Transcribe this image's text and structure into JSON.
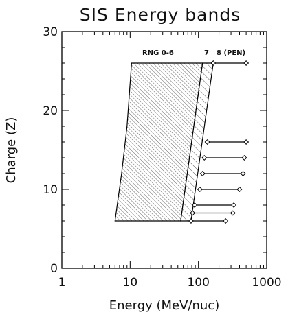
{
  "chart_data": {
    "type": "area",
    "title": "SIS Energy bands",
    "xlabel": "Energy (MeV/nuc)",
    "ylabel": "Charge (Z)",
    "xscale": "log",
    "xlim": [
      1,
      1000
    ],
    "ylim": [
      0,
      30
    ],
    "xticks": [
      1,
      10,
      100,
      1000
    ],
    "xtick_labels": [
      "1",
      "10",
      "100",
      "1000"
    ],
    "yticks": [
      0,
      10,
      20,
      30
    ],
    "ytick_labels": [
      "0",
      "10",
      "20",
      "30"
    ],
    "bands": [
      {
        "name": "RNG 0-6",
        "hatch": "dense",
        "low_edge": [
          {
            "z": 6,
            "energy": 6.0
          },
          {
            "z": 12,
            "energy": 7.5
          },
          {
            "z": 18,
            "energy": 9.0
          },
          {
            "z": 26,
            "energy": 10.5
          }
        ],
        "high_edge": [
          {
            "z": 6,
            "energy": 55
          },
          {
            "z": 26,
            "energy": 115
          }
        ]
      },
      {
        "name": "7",
        "hatch": "sparse",
        "low_edge": [
          {
            "z": 6,
            "energy": 55
          },
          {
            "z": 26,
            "energy": 115
          }
        ],
        "high_edge": [
          {
            "z": 6,
            "energy": 78
          },
          {
            "z": 26,
            "energy": 165
          }
        ]
      }
    ],
    "pen_ranges": [
      {
        "z": 26,
        "min": 165,
        "max": 500
      },
      {
        "z": 16,
        "min": 135,
        "max": 500
      },
      {
        "z": 14,
        "min": 122,
        "max": 470
      },
      {
        "z": 12,
        "min": 115,
        "max": 450
      },
      {
        "z": 10,
        "min": 105,
        "max": 400
      },
      {
        "z": 8,
        "min": 88,
        "max": 330
      },
      {
        "z": 7,
        "min": 82,
        "max": 320
      },
      {
        "z": 6,
        "min": 78,
        "max": 250
      }
    ],
    "annotations": [
      "RNG 0-6",
      "7",
      "8 (PEN)"
    ]
  }
}
